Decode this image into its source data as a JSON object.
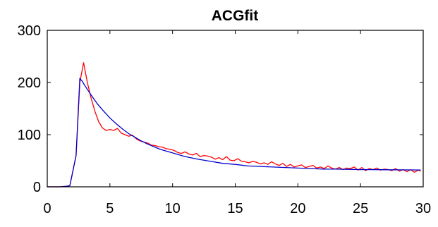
{
  "chart_data": {
    "type": "line",
    "title": "ACGfit",
    "xlabel": "",
    "ylabel": "",
    "xlim": [
      0,
      30
    ],
    "ylim": [
      0,
      300
    ],
    "xticks": [
      "0",
      "5",
      "10",
      "15",
      "20",
      "25",
      "30"
    ],
    "yticks": [
      "0",
      "100",
      "200",
      "300"
    ],
    "grid": false,
    "legend": "none",
    "series": [
      {
        "color": "#ff0000",
        "x": [
          0,
          1,
          1.5,
          1.8,
          2.0,
          2.3,
          2.6,
          2.9,
          3.2,
          3.5,
          3.8,
          4.1,
          4.4,
          4.7,
          5.0,
          5.3,
          5.6,
          5.9,
          6.2,
          6.5,
          6.8,
          7.1,
          7.4,
          7.7,
          8.0,
          8.3,
          8.6,
          8.9,
          9.2,
          9.5,
          9.8,
          10.1,
          10.4,
          10.7,
          11.0,
          11.3,
          11.6,
          11.9,
          12.2,
          12.5,
          12.8,
          13.1,
          13.4,
          13.7,
          14.0,
          14.3,
          14.6,
          14.9,
          15.2,
          15.5,
          15.8,
          16.1,
          16.4,
          16.7,
          17.0,
          17.3,
          17.6,
          17.9,
          18.2,
          18.5,
          18.8,
          19.1,
          19.4,
          19.7,
          20.0,
          20.3,
          20.6,
          20.9,
          21.2,
          21.5,
          21.8,
          22.1,
          22.4,
          22.7,
          23.0,
          23.3,
          23.6,
          23.9,
          24.2,
          24.5,
          24.8,
          25.1,
          25.4,
          25.7,
          26.0,
          26.3,
          26.6,
          26.9,
          27.2,
          27.5,
          27.8,
          28.1,
          28.4,
          28.7,
          29.0,
          29.3,
          29.6,
          29.8
        ],
        "y": [
          0,
          0,
          1,
          2,
          25,
          60,
          200,
          238,
          200,
          170,
          145,
          125,
          113,
          108,
          110,
          108,
          112,
          103,
          100,
          97,
          99,
          92,
          88,
          86,
          84,
          80,
          79,
          77,
          76,
          73,
          72,
          70,
          66,
          64,
          67,
          63,
          61,
          64,
          58,
          60,
          59,
          57,
          53,
          56,
          52,
          58,
          51,
          50,
          54,
          49,
          48,
          46,
          49,
          47,
          44,
          46,
          43,
          48,
          44,
          41,
          45,
          39,
          43,
          38,
          40,
          42,
          37,
          39,
          41,
          36,
          38,
          35,
          40,
          36,
          34,
          37,
          33,
          36,
          35,
          38,
          32,
          37,
          31,
          35,
          33,
          36,
          32,
          34,
          33,
          31,
          35,
          30,
          33,
          29,
          33,
          28,
          32,
          30
        ]
      },
      {
        "color": "#0000cc",
        "x": [
          0,
          1,
          1.5,
          1.8,
          2.0,
          2.3,
          2.6,
          2.8,
          3.0,
          3.5,
          4.0,
          4.5,
          5.0,
          5.5,
          6.0,
          6.5,
          7.0,
          7.5,
          8.0,
          8.5,
          9.0,
          10.0,
          11.0,
          12.0,
          13.0,
          14.0,
          15.0,
          16.0,
          17.0,
          18.0,
          19.0,
          20.0,
          21.0,
          22.0,
          23.0,
          24.0,
          25.0,
          26.0,
          27.0,
          28.0,
          29.0,
          29.8
        ],
        "y": [
          0,
          0,
          1,
          2,
          25,
          60,
          208,
          202,
          194,
          176,
          159,
          145,
          132,
          121,
          111,
          102,
          95,
          88,
          82,
          77,
          72,
          65,
          58,
          53,
          49,
          45,
          43,
          40,
          39,
          38,
          37,
          36,
          35,
          34,
          34,
          33.5,
          33,
          33,
          32.7,
          32.5,
          32.4,
          32.3
        ]
      }
    ]
  }
}
